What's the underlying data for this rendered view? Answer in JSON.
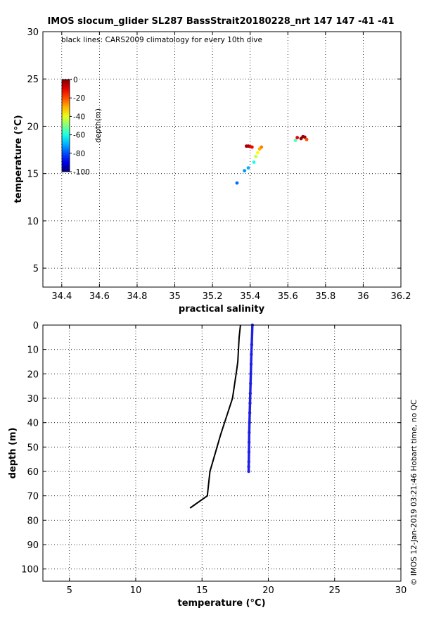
{
  "chart_data": [
    {
      "type": "scatter",
      "title": "IMOS slocum_glider SL287 BassStrait20180228_nrt 147  147  -41  -41",
      "annotation": "black lines: CARS2009 climatology for every 10th dive",
      "xlabel": "practical salinity",
      "ylabel": "temperature (°C)",
      "xlim": [
        34.3,
        36.2
      ],
      "ylim": [
        3,
        30
      ],
      "xticks": [
        34.4,
        34.6,
        34.8,
        35,
        35.2,
        35.4,
        35.6,
        35.8,
        36,
        36.2
      ],
      "yticks": [
        5,
        10,
        15,
        20,
        25,
        30
      ],
      "grid": true,
      "colorbar": {
        "label": "depth(m)",
        "range": [
          -100,
          0
        ],
        "ticks": [
          0,
          -20,
          -40,
          -60,
          -80,
          -100
        ],
        "colormap": "jet"
      },
      "points": [
        {
          "x": 35.33,
          "y": 14.0,
          "depth": -77
        },
        {
          "x": 35.37,
          "y": 15.3,
          "depth": -73
        },
        {
          "x": 35.39,
          "y": 15.6,
          "depth": -70
        },
        {
          "x": 35.42,
          "y": 16.2,
          "depth": -60
        },
        {
          "x": 35.43,
          "y": 16.8,
          "depth": -44
        },
        {
          "x": 35.44,
          "y": 17.2,
          "depth": -38
        },
        {
          "x": 35.45,
          "y": 17.6,
          "depth": -30
        },
        {
          "x": 35.46,
          "y": 17.8,
          "depth": -25
        },
        {
          "x": 35.38,
          "y": 17.9,
          "depth": -5
        },
        {
          "x": 35.39,
          "y": 17.9,
          "depth": -2
        },
        {
          "x": 35.4,
          "y": 17.85,
          "depth": -8
        },
        {
          "x": 35.41,
          "y": 17.8,
          "depth": -12
        },
        {
          "x": 35.64,
          "y": 18.5,
          "depth": -55
        },
        {
          "x": 35.65,
          "y": 18.8,
          "depth": -10
        },
        {
          "x": 35.67,
          "y": 18.7,
          "depth": -3
        },
        {
          "x": 35.68,
          "y": 18.9,
          "depth": -1
        },
        {
          "x": 35.69,
          "y": 18.85,
          "depth": -4
        },
        {
          "x": 35.7,
          "y": 18.6,
          "depth": -20
        }
      ]
    },
    {
      "type": "line",
      "xlabel": "temperature (°C)",
      "ylabel": "depth (m)",
      "xlim": [
        3,
        30
      ],
      "ylim": [
        105,
        0
      ],
      "xticks": [
        5,
        10,
        15,
        20,
        25,
        30
      ],
      "yticks": [
        0,
        10,
        20,
        30,
        40,
        50,
        60,
        70,
        80,
        90,
        100
      ],
      "grid": true,
      "series": [
        {
          "style": "line",
          "color": "#000000",
          "x": [
            17.9,
            17.8,
            17.7,
            17.6,
            17.3,
            16.4,
            15.6,
            15.4,
            14.1
          ],
          "y": [
            0,
            5,
            15,
            19,
            30,
            45,
            60,
            70,
            75
          ]
        },
        {
          "style": "points",
          "color": "#1f1fe6",
          "x": [
            18.8,
            18.75,
            18.72,
            18.7,
            18.68,
            18.66,
            18.64,
            18.62,
            18.6,
            18.58,
            18.56,
            18.55,
            18.54,
            18.53,
            18.52,
            18.52
          ],
          "y": [
            0,
            8,
            12,
            16,
            20,
            24,
            28,
            32,
            36,
            40,
            44,
            48,
            52,
            56,
            58,
            60
          ]
        }
      ]
    }
  ],
  "side_text": "© IMOS 12-Jan-2019 03:21:46 Hobart time, no QC"
}
